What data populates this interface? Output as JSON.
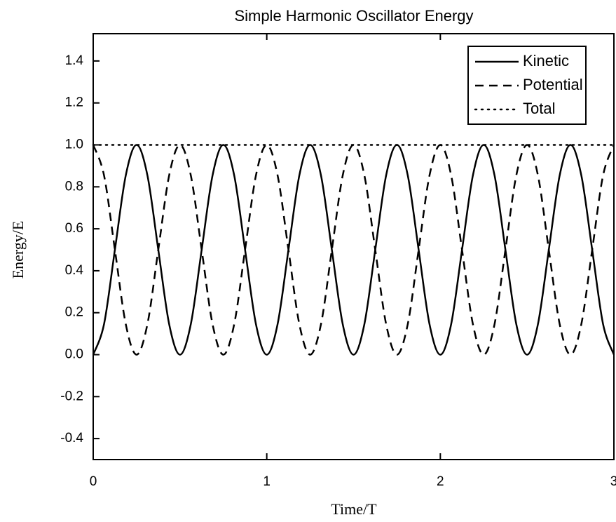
{
  "chart_data": {
    "type": "line",
    "title": "Simple Harmonic Oscillator Energy",
    "xlabel": "Time/T",
    "ylabel": "Energy/E",
    "x": [
      0,
      0.0625,
      0.125,
      0.1875,
      0.25,
      0.3125,
      0.375,
      0.4375,
      0.5,
      0.5625,
      0.625,
      0.6875,
      0.75,
      0.8125,
      0.875,
      0.9375,
      1,
      1.0625,
      1.125,
      1.1875,
      1.25,
      1.3125,
      1.375,
      1.4375,
      1.5,
      1.5625,
      1.625,
      1.6875,
      1.75,
      1.8125,
      1.875,
      1.9375,
      2,
      2.0625,
      2.125,
      2.1875,
      2.25,
      2.3125,
      2.375,
      2.4375,
      2.5,
      2.5625,
      2.625,
      2.6875,
      2.75,
      2.8125,
      2.875,
      2.9375,
      3
    ],
    "series": [
      {
        "name": "Kinetic",
        "color": "#000000",
        "dash": "solid",
        "values": [
          0,
          0.146,
          0.5,
          0.854,
          1,
          0.854,
          0.5,
          0.146,
          0,
          0.146,
          0.5,
          0.854,
          1,
          0.854,
          0.5,
          0.146,
          0,
          0.146,
          0.5,
          0.854,
          1,
          0.854,
          0.5,
          0.146,
          0,
          0.146,
          0.5,
          0.854,
          1,
          0.854,
          0.5,
          0.146,
          0,
          0.146,
          0.5,
          0.854,
          1,
          0.854,
          0.5,
          0.146,
          0,
          0.146,
          0.5,
          0.854,
          1,
          0.854,
          0.5,
          0.146,
          0
        ]
      },
      {
        "name": "Potential",
        "color": "#000000",
        "dash": "dashed",
        "values": [
          1,
          0.854,
          0.5,
          0.146,
          0,
          0.146,
          0.5,
          0.854,
          1,
          0.854,
          0.5,
          0.146,
          0,
          0.146,
          0.5,
          0.854,
          1,
          0.854,
          0.5,
          0.146,
          0,
          0.146,
          0.5,
          0.854,
          1,
          0.854,
          0.5,
          0.146,
          0,
          0.146,
          0.5,
          0.854,
          1,
          0.854,
          0.5,
          0.146,
          0,
          0.146,
          0.5,
          0.854,
          1,
          0.854,
          0.5,
          0.146,
          0,
          0.146,
          0.5,
          0.854,
          1
        ]
      },
      {
        "name": "Total",
        "color": "#000000",
        "dash": "dotted",
        "values": [
          1,
          1,
          1,
          1,
          1,
          1,
          1,
          1,
          1,
          1,
          1,
          1,
          1,
          1,
          1,
          1,
          1,
          1,
          1,
          1,
          1,
          1,
          1,
          1,
          1,
          1,
          1,
          1,
          1,
          1,
          1,
          1,
          1,
          1,
          1,
          1,
          1,
          1,
          1,
          1,
          1,
          1,
          1,
          1,
          1,
          1,
          1,
          1,
          1
        ]
      }
    ],
    "xlim": [
      0,
      3
    ],
    "xticks": [
      0,
      1,
      2,
      3
    ],
    "ylim": [
      -0.5,
      1.5
    ],
    "yticks": [
      -0.4,
      -0.2,
      {
        "value": 0,
        "label": "0.0"
      },
      0.2,
      0.4,
      0.6,
      0.8,
      {
        "value": 1,
        "label": "1.0"
      },
      1.2,
      1.4
    ],
    "legend": "upper right"
  }
}
